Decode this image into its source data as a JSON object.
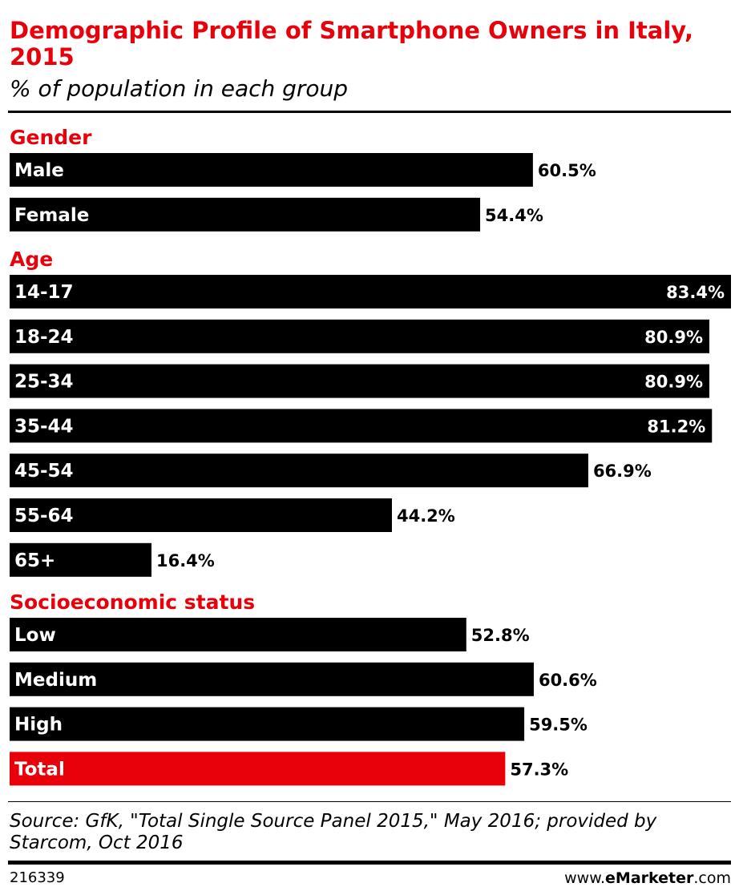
{
  "chart_data": {
    "type": "bar",
    "orientation": "horizontal",
    "title": "Demographic Profile of Smartphone Owners in Italy, 2015",
    "subtitle": "% of population in each group",
    "value_suffix": "%",
    "xlim": [
      0,
      83.4
    ],
    "groups": [
      {
        "name": "Gender",
        "bars": [
          {
            "label": "Male",
            "value": 60.5,
            "value_label": "60.5%"
          },
          {
            "label": "Female",
            "value": 54.4,
            "value_label": "54.4%"
          }
        ]
      },
      {
        "name": "Age",
        "bars": [
          {
            "label": "14-17",
            "value": 83.4,
            "value_label": "83.4%"
          },
          {
            "label": "18-24",
            "value": 80.9,
            "value_label": "80.9%"
          },
          {
            "label": "25-34",
            "value": 80.9,
            "value_label": "80.9%"
          },
          {
            "label": "35-44",
            "value": 81.2,
            "value_label": "81.2%"
          },
          {
            "label": "45-54",
            "value": 66.9,
            "value_label": "66.9%"
          },
          {
            "label": "55-64",
            "value": 44.2,
            "value_label": "44.2%"
          },
          {
            "label": "65+",
            "value": 16.4,
            "value_label": "16.4%"
          }
        ]
      },
      {
        "name": "Socioeconomic status",
        "bars": [
          {
            "label": "Low",
            "value": 52.8,
            "value_label": "52.8%"
          },
          {
            "label": "Medium",
            "value": 60.6,
            "value_label": "60.6%"
          },
          {
            "label": "High",
            "value": 59.5,
            "value_label": "59.5%"
          },
          {
            "label": "Total",
            "value": 57.3,
            "value_label": "57.3%",
            "highlight": true
          }
        ]
      }
    ],
    "colors": {
      "bar": "#000000",
      "highlight_bar": "#e8000b",
      "section_label": "#e8000b"
    }
  },
  "footer": {
    "source": "Source: GfK, \"Total Single Source Panel 2015,\" May 2016; provided by Starcom, Oct 2016",
    "chart_id": "216339",
    "brand_prefix": "www.",
    "brand_name": "eMarketer",
    "brand_suffix": ".com"
  }
}
